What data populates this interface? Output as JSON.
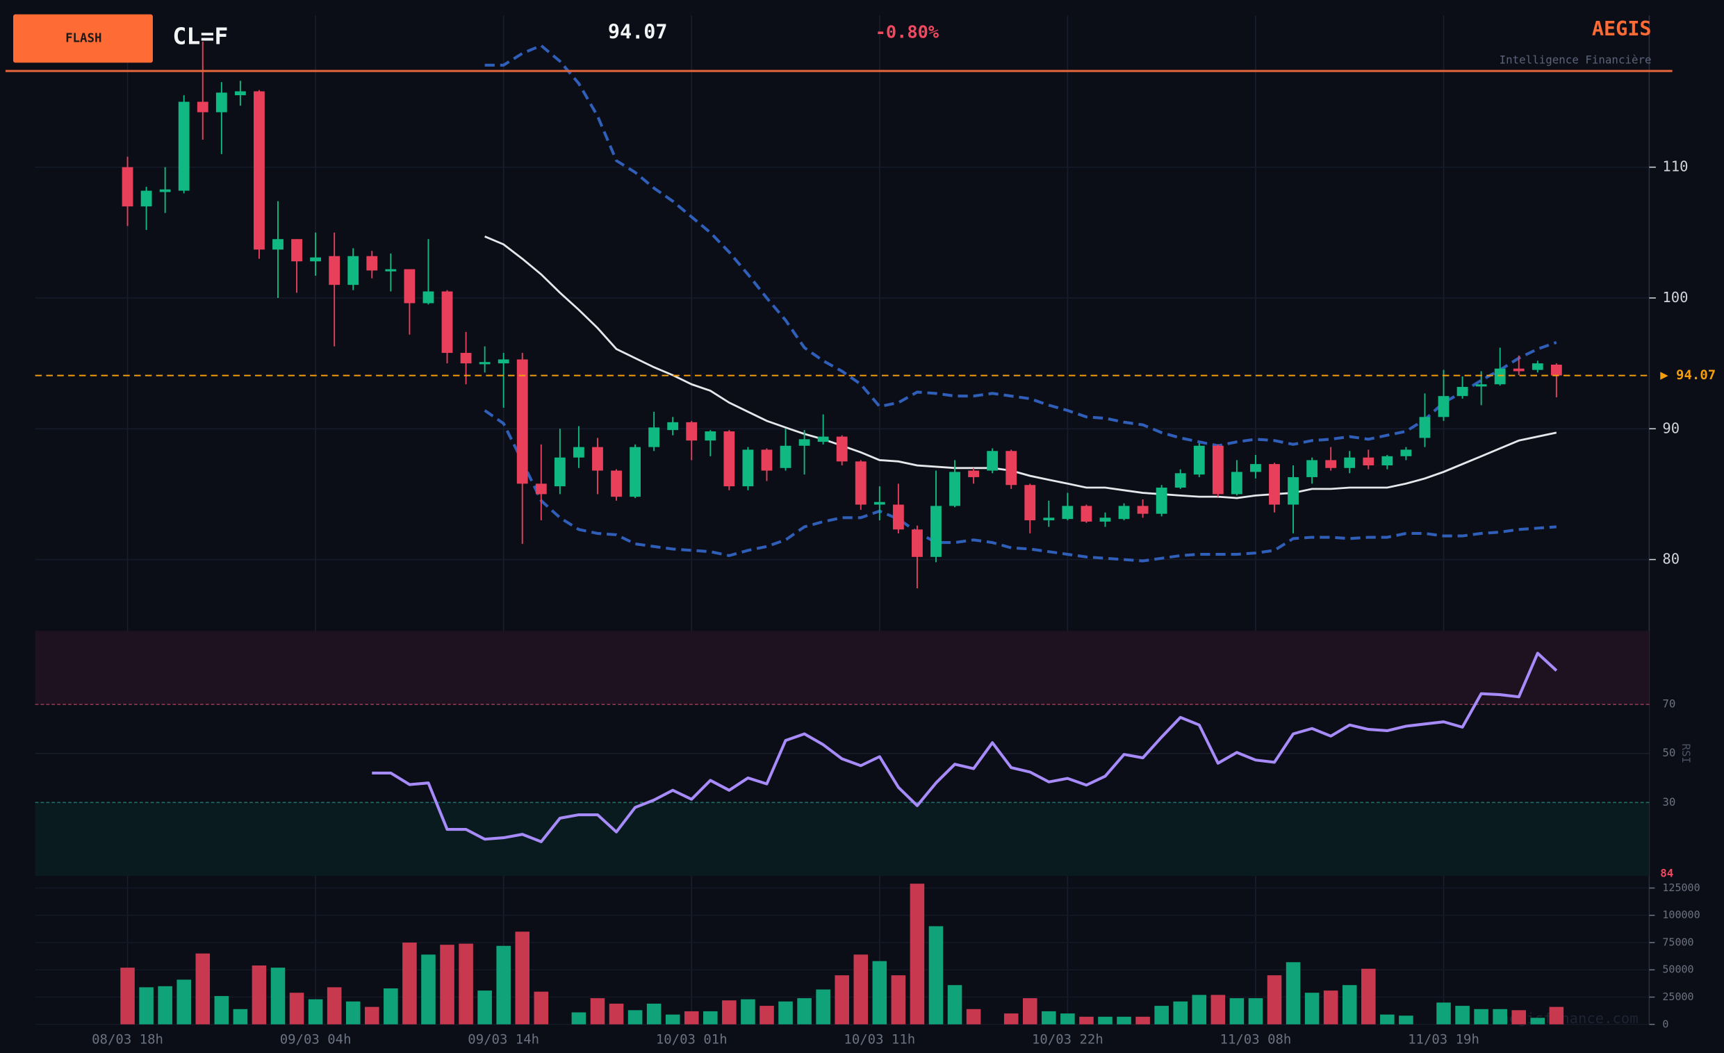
{
  "header": {
    "button": "FLASH",
    "symbol": "CL=F",
    "change": "-0.80%",
    "brand": "AEGIS",
    "tagline": "Intelligence Financière",
    "watermark": "aegisfinance.com"
  },
  "chart_data": [
    {
      "type": "candlestick",
      "last_price": 94.07,
      "price_label": "▶ 94.07",
      "price_line_color": "#f59e0b",
      "up_color": "#10b981",
      "down_color": "#e8405a",
      "ylim": [
        75.3,
        121.6
      ],
      "yticks": [
        80,
        90,
        100,
        110
      ],
      "grid": true,
      "ohlc": {
        "open": [
          110,
          107,
          108.1,
          108.2,
          115,
          114.2,
          115.5,
          115.8,
          103.7,
          104.5,
          102.8,
          103.2,
          101,
          103.2,
          102.1,
          102.2,
          99.6,
          100.5,
          95.8,
          95,
          95,
          95.3,
          85.8,
          85.6,
          87.8,
          88.6,
          86.8,
          84.8,
          88.6,
          89.9,
          90.5,
          89.1,
          89.8,
          85.6,
          88.4,
          87,
          88.7,
          89,
          89.4,
          87.5,
          84.2,
          84.2,
          82.3,
          80.2,
          84.1,
          86.8,
          86.8,
          88.3,
          85.7,
          83,
          83.1,
          84.1,
          82.9,
          83.1,
          84.1,
          83.5,
          85.5,
          86.5,
          88.7,
          85,
          86.7,
          87.3,
          84.2,
          86.3,
          87.6,
          87,
          87.8,
          87.2,
          87.9,
          89.3,
          90.9,
          92.5,
          93.3,
          93.4,
          94.6,
          94.5,
          94.9
        ],
        "high": [
          110.8,
          108.5,
          110,
          115.5,
          119.6,
          116.5,
          116.6,
          115.9,
          107.4,
          104.5,
          105,
          105,
          103.8,
          103.6,
          103.4,
          102.2,
          104.5,
          100.6,
          97.4,
          96.3,
          95.8,
          95.8,
          88.8,
          90,
          90.2,
          89.3,
          86.9,
          88.8,
          91.3,
          90.9,
          90.6,
          89.9,
          89.9,
          88.6,
          88.5,
          90,
          89.9,
          91.1,
          89.5,
          87.6,
          85.6,
          85.8,
          82.6,
          86.8,
          87.6,
          87,
          88.5,
          88.4,
          85.8,
          84.5,
          85.1,
          84.2,
          83.6,
          84.3,
          84.6,
          85.7,
          86.9,
          88.9,
          88.8,
          87.6,
          88,
          87.4,
          87.2,
          87.8,
          88.6,
          88.3,
          88.4,
          88,
          88.6,
          92.7,
          94.5,
          94,
          94.4,
          96.2,
          95.6,
          95.2,
          95
        ],
        "low": [
          105.5,
          105.2,
          106.5,
          108,
          112.1,
          111,
          114.7,
          103,
          100,
          100.4,
          101.7,
          96.3,
          100.6,
          101.5,
          100.5,
          97.2,
          99.5,
          95,
          93.4,
          94.3,
          91.6,
          81.2,
          83,
          85,
          87,
          85,
          84.5,
          84.7,
          88.3,
          89.5,
          87.6,
          87.9,
          85.3,
          85.3,
          86,
          86.8,
          86.5,
          88.8,
          87.2,
          83.8,
          83,
          82,
          77.8,
          79.8,
          84,
          85.8,
          86.6,
          85.4,
          82,
          82.5,
          83,
          82.8,
          82.5,
          83,
          83.2,
          83.3,
          85.4,
          86.3,
          84.8,
          84.9,
          86.2,
          83.6,
          82,
          85.8,
          86.8,
          86.6,
          86.9,
          86.9,
          87.6,
          88.6,
          90.6,
          92.3,
          91.8,
          93.3,
          94.1,
          94.3,
          92.4
        ],
        "close": [
          107,
          108.2,
          108.3,
          115,
          114.2,
          115.7,
          115.8,
          103.7,
          104.5,
          102.8,
          103.1,
          101,
          103.2,
          102.1,
          102.2,
          99.6,
          100.5,
          95.8,
          95,
          95.1,
          95.3,
          85.8,
          85,
          87.8,
          88.6,
          86.8,
          84.8,
          88.6,
          90.1,
          90.5,
          89.1,
          89.8,
          85.6,
          88.4,
          86.8,
          88.7,
          89.2,
          89.4,
          87.5,
          84.2,
          84.4,
          82.3,
          80.2,
          84.1,
          86.7,
          86.3,
          88.3,
          85.7,
          83,
          83.2,
          84.1,
          82.9,
          83.2,
          84.1,
          83.5,
          85.5,
          86.6,
          88.7,
          85,
          86.7,
          87.3,
          84.2,
          86.3,
          87.6,
          87,
          87.8,
          87.2,
          87.9,
          88.4,
          90.9,
          92.5,
          93.2,
          93.4,
          94.6,
          94.4,
          95,
          94.07
        ]
      },
      "overlays": [
        {
          "color": "#e5e7eb",
          "dashed": false,
          "values": [
            null,
            null,
            null,
            null,
            null,
            null,
            null,
            null,
            null,
            null,
            null,
            null,
            null,
            null,
            null,
            null,
            null,
            null,
            null,
            104.7,
            104.1,
            103,
            101.8,
            100.4,
            99.1,
            97.7,
            96.1,
            95.4,
            94.7,
            94.1,
            93.4,
            92.9,
            92,
            91.3,
            90.6,
            90.1,
            89.6,
            89.2,
            88.7,
            88.2,
            87.6,
            87.5,
            87.2,
            87.1,
            87,
            87,
            87,
            86.8,
            86.4,
            86.1,
            85.8,
            85.5,
            85.5,
            85.3,
            85.1,
            85,
            84.9,
            84.8,
            84.8,
            84.7,
            84.9,
            85,
            85.1,
            85.4,
            85.4,
            85.5,
            85.5,
            85.5,
            85.8,
            86.2,
            86.7,
            87.3,
            87.9,
            88.5,
            89.1,
            89.4,
            89.7
          ]
        },
        {
          "color": "#2f5fb8",
          "dashed": true,
          "values": [
            null,
            null,
            null,
            null,
            null,
            null,
            null,
            null,
            null,
            null,
            null,
            null,
            null,
            null,
            null,
            null,
            null,
            null,
            null,
            117.8,
            117.8,
            118.7,
            119.3,
            118.1,
            116.4,
            113.9,
            110.5,
            109.6,
            108.4,
            107.4,
            106.2,
            105,
            103.5,
            101.8,
            100,
            98.3,
            96.2,
            95.2,
            94.4,
            93.4,
            91.7,
            92,
            92.8,
            92.7,
            92.5,
            92.5,
            92.7,
            92.5,
            92.3,
            91.8,
            91.4,
            90.9,
            90.8,
            90.5,
            90.3,
            89.7,
            89.3,
            89,
            88.7,
            89,
            89.2,
            89.1,
            88.8,
            89.1,
            89.2,
            89.4,
            89.2,
            89.5,
            89.8,
            90.7,
            92,
            92.8,
            93.7,
            94.5,
            95.4,
            96.1,
            96.6
          ]
        },
        {
          "color": "#2f5fb8",
          "dashed": true,
          "values": [
            null,
            null,
            null,
            null,
            null,
            null,
            null,
            null,
            null,
            null,
            null,
            null,
            null,
            null,
            null,
            null,
            null,
            null,
            null,
            91.4,
            90.4,
            87.5,
            84.5,
            83.2,
            82.3,
            82,
            81.9,
            81.2,
            81,
            80.8,
            80.7,
            80.6,
            80.3,
            80.7,
            81,
            81.5,
            82.5,
            82.9,
            83.2,
            83.2,
            83.7,
            83.1,
            82.1,
            81.3,
            81.3,
            81.5,
            81.3,
            80.9,
            80.8,
            80.6,
            80.4,
            80.2,
            80.1,
            80,
            79.9,
            80.1,
            80.3,
            80.4,
            80.4,
            80.4,
            80.5,
            80.7,
            81.6,
            81.7,
            81.7,
            81.6,
            81.7,
            81.7,
            82,
            82,
            81.8,
            81.8,
            82,
            82.1,
            82.3,
            82.4,
            82.5
          ]
        }
      ]
    },
    {
      "type": "line",
      "ylabel": "RSI",
      "current_value": 84,
      "color": "#a78bfa",
      "ylim": [
        0,
        100
      ],
      "yticks": [
        30,
        50,
        70
      ],
      "values": [
        null,
        null,
        null,
        null,
        null,
        null,
        null,
        null,
        null,
        null,
        null,
        null,
        null,
        42,
        42,
        37.3,
        38,
        19,
        19,
        15,
        15.6,
        17,
        14,
        23.6,
        25,
        25,
        18,
        28,
        31,
        35,
        31.3,
        39,
        35,
        40,
        37.6,
        55.3,
        58,
        53.6,
        47.8,
        45,
        48.7,
        36.2,
        28.7,
        38,
        45.6,
        43.8,
        54.4,
        44.2,
        42.4,
        38.4,
        39.8,
        37.1,
        40.7,
        49.6,
        48.2,
        56.7,
        64.7,
        61.6,
        46,
        50.4,
        47.3,
        46.4,
        58,
        60.2,
        57.1,
        61.6,
        59.8,
        59.3,
        61.1,
        62,
        62.9,
        60.7,
        74.4,
        74,
        73.1,
        90.9,
        83.8
      ]
    },
    {
      "type": "bar",
      "up_color": "#10a37a",
      "down_color": "#c8384f",
      "ylim": [
        0,
        130000
      ],
      "yticks": [
        0,
        25000,
        50000,
        75000,
        100000,
        125000
      ],
      "categories": [
        "08/03 18h",
        null,
        null,
        null,
        null,
        null,
        null,
        null,
        null,
        null,
        "09/03 04h",
        null,
        null,
        null,
        null,
        null,
        null,
        null,
        null,
        null,
        "09/03 14h",
        null,
        null,
        null,
        null,
        null,
        null,
        null,
        null,
        null,
        "10/03 01h",
        null,
        null,
        null,
        null,
        null,
        null,
        null,
        null,
        null,
        "10/03 11h",
        null,
        null,
        null,
        null,
        null,
        null,
        null,
        null,
        null,
        "10/03 22h",
        null,
        null,
        null,
        null,
        null,
        null,
        null,
        null,
        null,
        "11/03 08h",
        null,
        null,
        null,
        null,
        null,
        null,
        null,
        null,
        null,
        "11/03 19h",
        null,
        null,
        null,
        null,
        null,
        null
      ],
      "values": [
        52000,
        34000,
        35000,
        41000,
        65000,
        26000,
        14000,
        54000,
        52000,
        29000,
        23000,
        34000,
        21000,
        16000,
        33000,
        75000,
        64000,
        73000,
        74000,
        31000,
        72000,
        85000,
        30000,
        0,
        11000,
        24000,
        19000,
        13000,
        19000,
        9000,
        12000,
        12000,
        22000,
        23000,
        17000,
        21000,
        24000,
        32000,
        45000,
        64000,
        58000,
        45000,
        129000,
        90000,
        36000,
        14000,
        0,
        10000,
        24000,
        12000,
        10000,
        7000,
        7000,
        7000,
        7000,
        17000,
        21000,
        27000,
        27000,
        24000,
        24000,
        45000,
        57000,
        29000,
        31000,
        36000,
        51000,
        9000,
        8000,
        0,
        20000,
        17000,
        14000,
        14000,
        13000,
        6000,
        16000
      ]
    }
  ]
}
